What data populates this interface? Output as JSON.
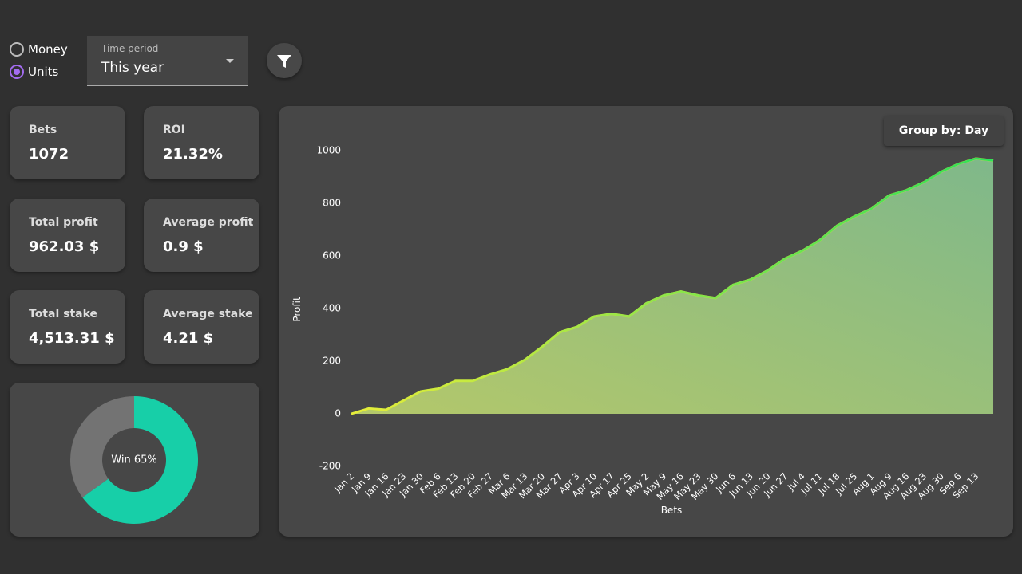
{
  "controls": {
    "unit_options": [
      "Money",
      "Units"
    ],
    "time_period": {
      "label": "Time period",
      "value": "This year"
    }
  },
  "stats": [
    {
      "label": "Bets",
      "value": "1072"
    },
    {
      "label": "ROI",
      "value": "21.32%"
    },
    {
      "label": "Total profit",
      "value": "962.03 $"
    },
    {
      "label": "Average profit",
      "value": "0.9 $"
    },
    {
      "label": "Total stake",
      "value": "4,513.31 $"
    },
    {
      "label": "Average stake",
      "value": "4.21 $"
    }
  ],
  "chart_controls": {
    "group_by": "Group by: Day"
  },
  "chart_data": [
    {
      "type": "pie",
      "center_label": "Win 65%",
      "values": [
        65,
        35
      ],
      "colors": [
        "#17cfa8",
        "#737373"
      ]
    },
    {
      "type": "area",
      "x_label": "Bets",
      "y_label": "Profit",
      "categories": [
        "Jan 2",
        "Jan 9",
        "Jan 16",
        "Jan 23",
        "Jan 30",
        "Feb 6",
        "Feb 13",
        "Feb 20",
        "Feb 27",
        "Mar 6",
        "Mar 13",
        "Mar 20",
        "Mar 27",
        "Apr 3",
        "Apr 10",
        "Apr 17",
        "Apr 25",
        "May 2",
        "May 9",
        "May 16",
        "May 23",
        "May 30",
        "Jun 6",
        "Jun 13",
        "Jun 20",
        "Jun 27",
        "Jul 4",
        "Jul 11",
        "Jul 18",
        "Jul 25",
        "Aug 1",
        "Aug 9",
        "Aug 16",
        "Aug 23",
        "Aug 30",
        "Sep 6",
        "Sep 13",
        null
      ],
      "series": [
        {
          "name": "Profit",
          "color": "#c6e83a",
          "values": [
            0,
            20,
            15,
            50,
            85,
            95,
            125,
            125,
            150,
            170,
            205,
            255,
            310,
            330,
            370,
            380,
            370,
            420,
            450,
            465,
            450,
            440,
            490,
            510,
            545,
            590,
            620,
            660,
            715,
            750,
            780,
            830,
            850,
            880,
            920,
            950,
            970,
            962
          ]
        }
      ],
      "ylim": [
        -200,
        1000
      ],
      "yticks": [
        -200,
        0,
        200,
        400,
        600,
        800,
        1000
      ]
    }
  ]
}
